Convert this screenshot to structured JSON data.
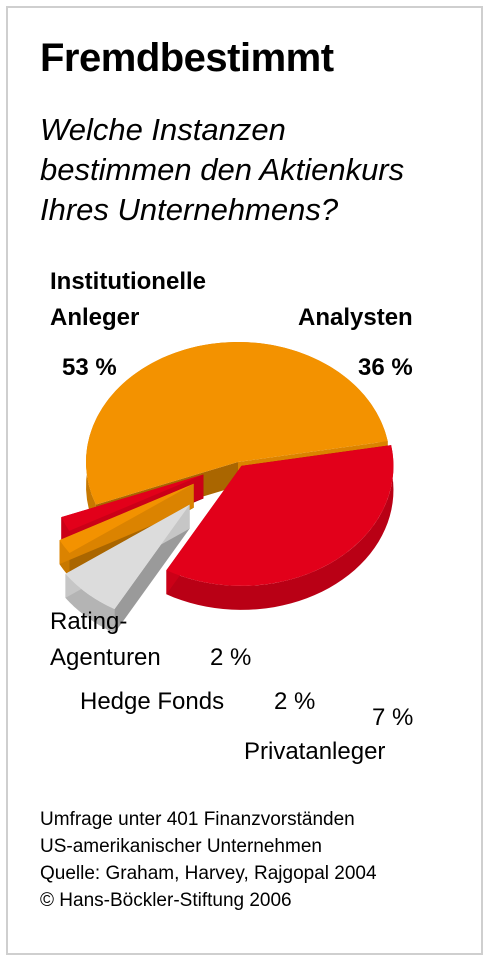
{
  "title": "Fremdbestimmt",
  "subtitle_lines": [
    "Welche Instanzen",
    "bestimmen den Aktienkurs",
    "Ihres Unternehmens?"
  ],
  "chart_data": {
    "type": "pie",
    "categories": [
      "Institutionelle Anleger",
      "Analysten",
      "Privatanleger",
      "Hedge Fonds",
      "Rating-Agenturen"
    ],
    "values": [
      53,
      36,
      7,
      2,
      2
    ],
    "value_labels": [
      "53 %",
      "36 %",
      "7 %",
      "2 %",
      "2 %"
    ],
    "colors": [
      "#f39200",
      "#e2001a",
      "#dcdcdc",
      "#f39200",
      "#e2001a"
    ],
    "labels": {
      "institutionelle_line1": "Institutionelle",
      "institutionelle_line2": "Anleger",
      "analysten": "Analysten",
      "rating_line1": "Rating-",
      "rating_line2": "Agenturen",
      "hedge": "Hedge Fonds",
      "privat": "Privatanleger"
    }
  },
  "footer": {
    "line1": "Umfrage unter 401 Finanzvorständen",
    "line2": "US-amerikanischer Unternehmen",
    "line3": "Quelle: Graham, Harvey, Rajgopal 2004",
    "line4": "© Hans-Böckler-Stiftung 2006"
  }
}
